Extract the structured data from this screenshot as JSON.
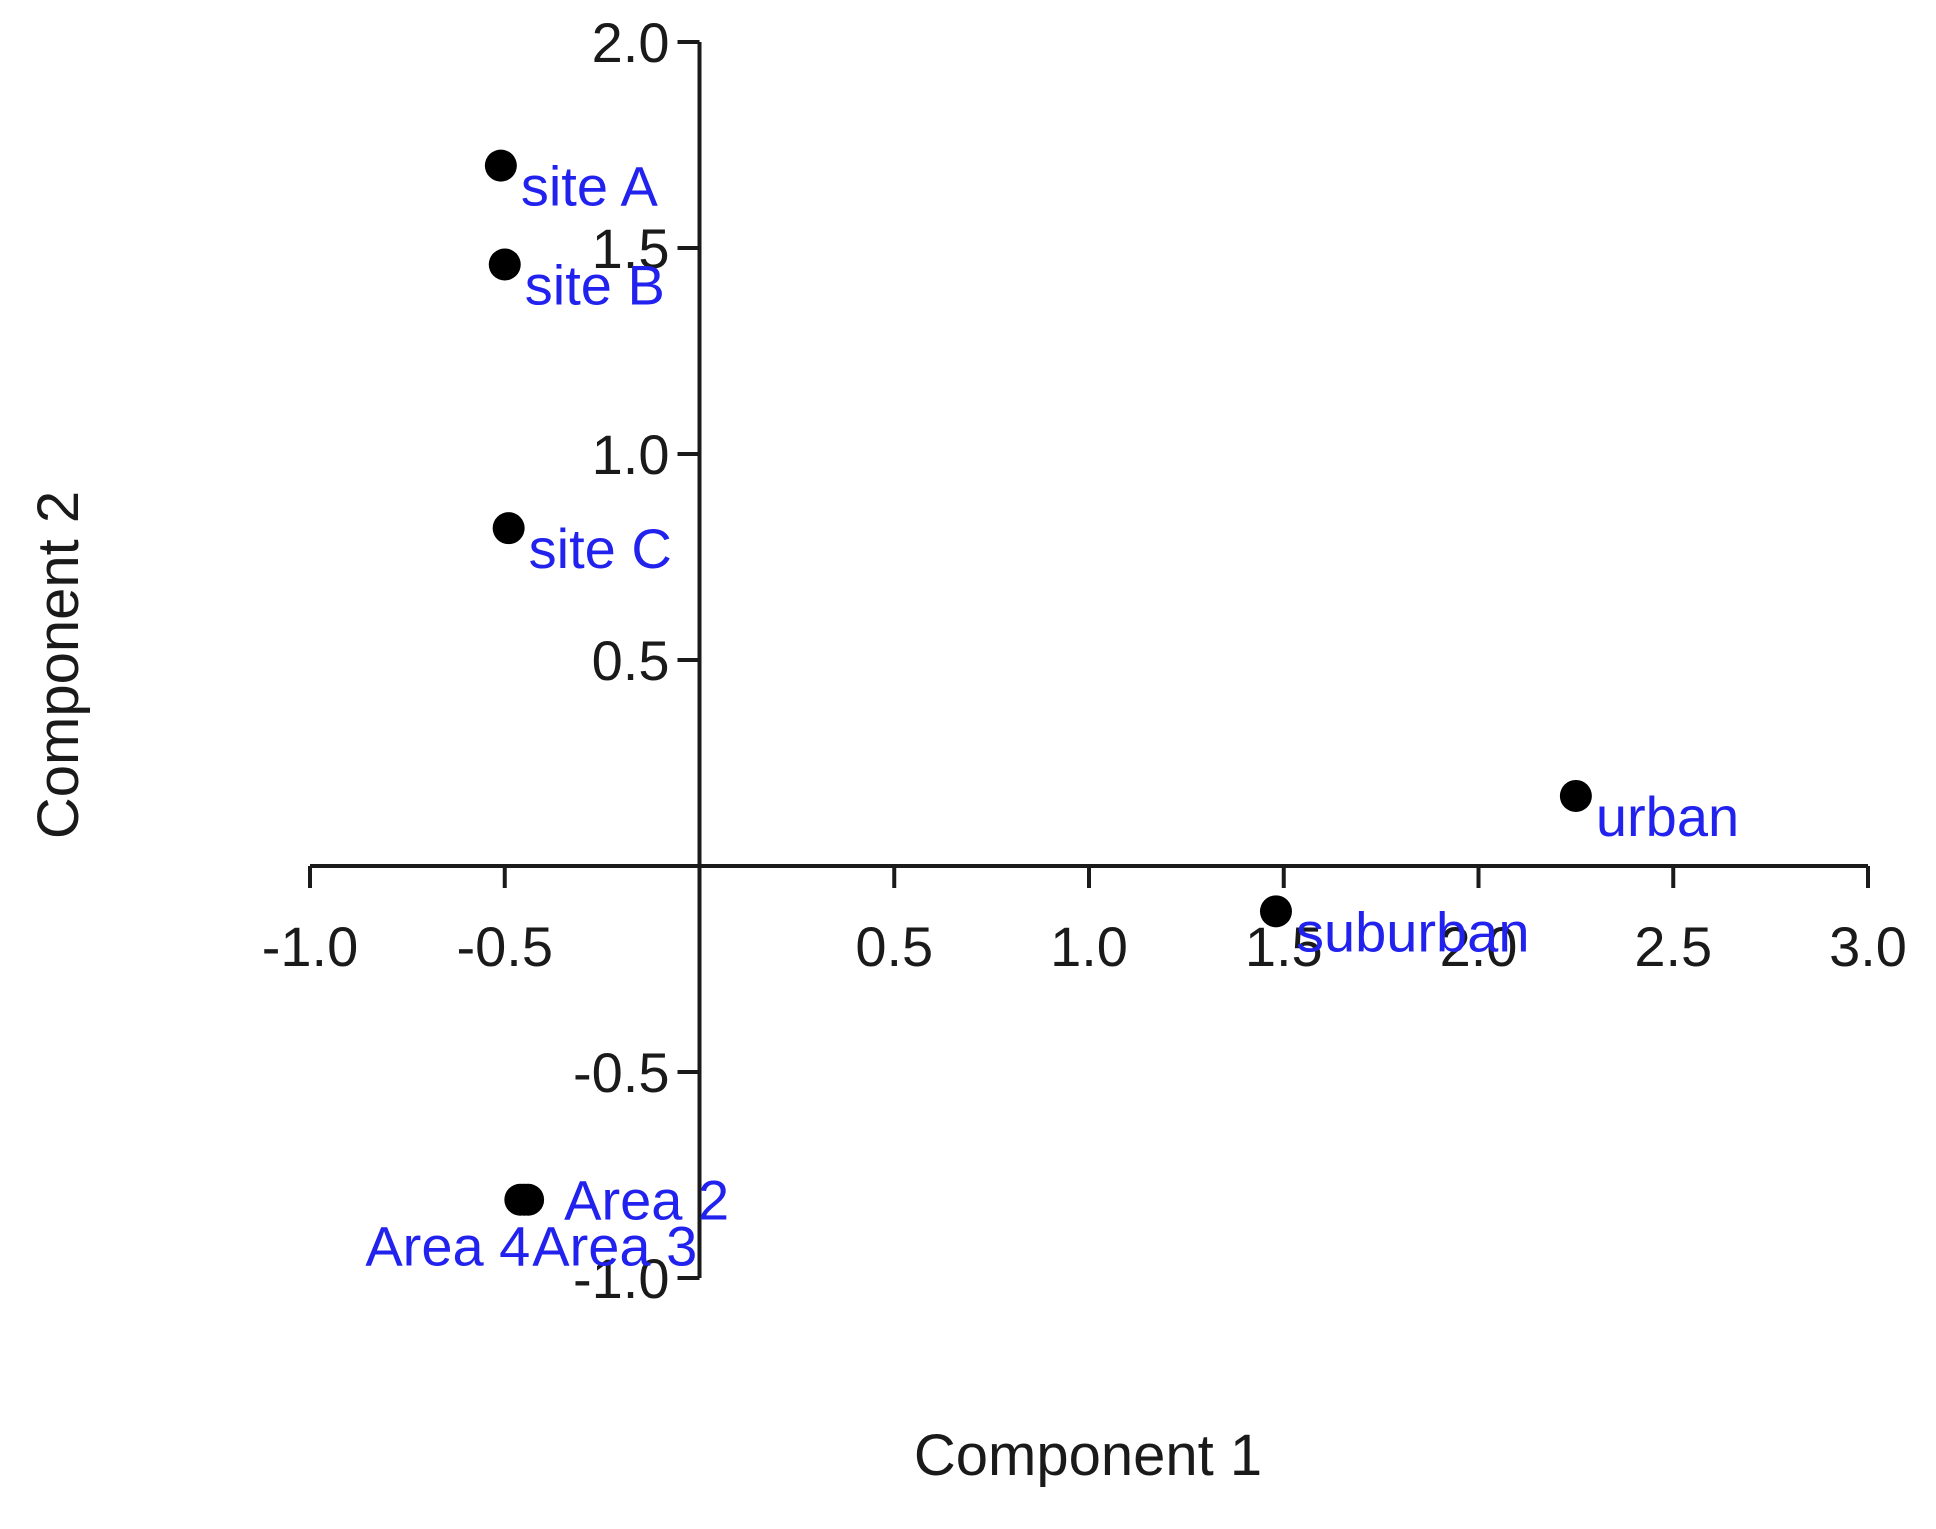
{
  "chart_data": {
    "type": "scatter",
    "title": "",
    "xlabel": "Component 1",
    "ylabel": "Component 2",
    "xlim": [
      -1.0,
      3.0
    ],
    "ylim": [
      -1.0,
      2.0
    ],
    "x_ticks": [
      -1.0,
      -0.5,
      0.5,
      1.0,
      1.5,
      2.0,
      2.5,
      3.0
    ],
    "x_tick_labels": [
      "-1.0",
      "-0.5",
      "0.5",
      "1.0",
      "1.5",
      "2.0",
      "2.5",
      "3.0"
    ],
    "y_ticks": [
      -1.0,
      -0.5,
      0.5,
      1.0,
      1.5,
      2.0
    ],
    "y_tick_labels": [
      "-1.0",
      "-0.5",
      "0.5",
      "1.0",
      "1.5",
      "2.0"
    ],
    "axes_cross_at_origin": true,
    "grid": false,
    "legend": "none",
    "colors": {
      "point": "#000000",
      "label": "#2222ee",
      "axis": "#1a1a1a"
    },
    "points": [
      {
        "label": "site A",
        "x": -0.51,
        "y": 1.7
      },
      {
        "label": "site B",
        "x": -0.5,
        "y": 1.46
      },
      {
        "label": "site C",
        "x": -0.49,
        "y": 0.82
      },
      {
        "label": "urban",
        "x": 2.25,
        "y": 0.17
      },
      {
        "label": "suburban",
        "x": 1.48,
        "y": -0.11
      },
      {
        "label": "Area 2",
        "x": -0.44,
        "y": -0.81
      },
      {
        "label": "Area 3",
        "x": -0.45,
        "y": -0.81
      },
      {
        "label": "Area 4",
        "x": -0.46,
        "y": -0.81
      }
    ]
  }
}
